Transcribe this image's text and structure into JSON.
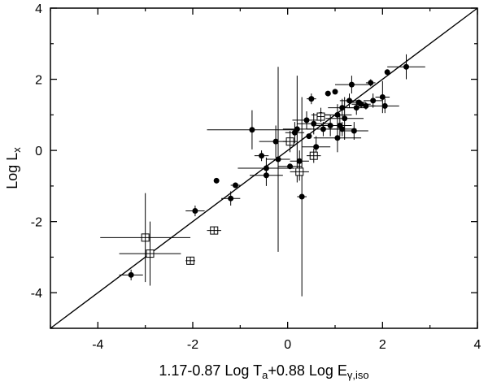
{
  "chart_data": {
    "type": "scatter",
    "title": "",
    "xlabel": {
      "main": "1.17-0.87 Log T",
      "sub1": "a",
      "mid": "+0.88 Log E",
      "sub2": "γ,iso"
    },
    "ylabel": {
      "main": "Log L",
      "sub": "x"
    },
    "xlim": [
      -5,
      4
    ],
    "ylim": [
      -5,
      4
    ],
    "xticks": [
      -4,
      -2,
      0,
      2,
      4
    ],
    "yticks": [
      -4,
      -2,
      0,
      2,
      4
    ],
    "xtick_labels": [
      "-4",
      "-2",
      "0",
      "2",
      "4"
    ],
    "ytick_labels": [
      "-4",
      "-2",
      "0",
      "2",
      "4"
    ],
    "grid": false,
    "fit_line": {
      "x": [
        -5,
        4
      ],
      "y": [
        -5,
        4
      ]
    },
    "series": [
      {
        "marker": "filled-circle",
        "points": [
          {
            "x": -3.3,
            "y": -3.5,
            "xerr": 0.25,
            "yerr": 0.15
          },
          {
            "x": -1.95,
            "y": -1.7,
            "xerr": 0.2,
            "yerr": 0.15
          },
          {
            "x": -1.5,
            "y": -0.85
          },
          {
            "x": -1.2,
            "y": -1.35,
            "xerr": 0.2,
            "yerr": 0.2
          },
          {
            "x": -1.1,
            "y": -0.98,
            "xerr": 0.1
          },
          {
            "x": -0.75,
            "y": 0.58,
            "xerr": 0.95,
            "yerr": 0.55
          },
          {
            "x": -0.55,
            "y": -0.15,
            "xerr": 0.15,
            "yerr": 0.15
          },
          {
            "x": -0.45,
            "y": -0.5,
            "xerr": 0.6,
            "yerr": 0.3
          },
          {
            "x": -0.45,
            "y": -0.7,
            "xerr": 0.35,
            "yerr": 0.3
          },
          {
            "x": -0.25,
            "y": 0.25,
            "xerr": 0.35,
            "yerr": 0.45
          },
          {
            "x": -0.2,
            "y": -0.25,
            "xerr": 0.25,
            "yerr": 2.6
          },
          {
            "x": 0.05,
            "y": -0.45,
            "xerr": 0.25
          },
          {
            "x": 0.15,
            "y": 0.5,
            "xerr": 0.2,
            "yerr": 0.3
          },
          {
            "x": 0.2,
            "y": 0.6,
            "xerr": 0.3,
            "yerr": 1.5
          },
          {
            "x": 0.25,
            "y": -0.3,
            "xerr": 0.2,
            "yerr": 0.3
          },
          {
            "x": 0.3,
            "y": -1.3,
            "xerr": 0.1,
            "yerr": 2.8
          },
          {
            "x": 0.4,
            "y": 0.85,
            "xerr": 0.3,
            "yerr": 0.25
          },
          {
            "x": 0.45,
            "y": 0.4
          },
          {
            "x": 0.5,
            "y": 1.45,
            "xerr": 0.1,
            "yerr": 0.15
          },
          {
            "x": 0.55,
            "y": 0.75,
            "xerr": 0.35,
            "yerr": 0.3
          },
          {
            "x": 0.6,
            "y": 0.1,
            "xerr": 0.3,
            "yerr": 0.3
          },
          {
            "x": 0.7,
            "y": 1.0,
            "xerr": 0.2,
            "yerr": 0.2
          },
          {
            "x": 0.75,
            "y": 0.6,
            "xerr": 0.35,
            "yerr": 0.2
          },
          {
            "x": 0.85,
            "y": 1.6
          },
          {
            "x": 0.9,
            "y": 0.7,
            "xerr": 0.3,
            "yerr": 0.3
          },
          {
            "x": 1.0,
            "y": 1.65
          },
          {
            "x": 1.05,
            "y": 0.35,
            "xerr": 0.5,
            "yerr": 0.4
          },
          {
            "x": 1.05,
            "y": 1.0,
            "xerr": 0.3,
            "yerr": 0.3
          },
          {
            "x": 1.1,
            "y": 0.7,
            "xerr": 0.25,
            "yerr": 0.3
          },
          {
            "x": 1.15,
            "y": 1.2,
            "xerr": 0.3,
            "yerr": 0.25
          },
          {
            "x": 1.15,
            "y": 0.6,
            "xerr": 0.3,
            "yerr": 0.2
          },
          {
            "x": 1.2,
            "y": 0.9,
            "xerr": 0.4,
            "yerr": 0.6
          },
          {
            "x": 1.3,
            "y": 1.4,
            "xerr": 0.2,
            "yerr": 0.2
          },
          {
            "x": 1.35,
            "y": 1.85,
            "xerr": 0.35,
            "yerr": 0.25
          },
          {
            "x": 1.4,
            "y": 0.55,
            "xerr": 0.3,
            "yerr": 0.25
          },
          {
            "x": 1.45,
            "y": 1.2,
            "xerr": 0.2,
            "yerr": 0.2
          },
          {
            "x": 1.5,
            "y": 1.35,
            "xerr": 0.15
          },
          {
            "x": 1.55,
            "y": 1.3,
            "xerr": 0.2,
            "yerr": 0.1
          },
          {
            "x": 1.65,
            "y": 1.25,
            "xerr": 0.2,
            "yerr": 0.1
          },
          {
            "x": 1.75,
            "y": 1.9,
            "xerr": 0.1,
            "yerr": 0.1
          },
          {
            "x": 1.8,
            "y": 1.4,
            "xerr": 0.2,
            "yerr": 0.2
          },
          {
            "x": 2.0,
            "y": 1.5,
            "xerr": 0.15,
            "yerr": 0.45
          },
          {
            "x": 2.05,
            "y": 1.25,
            "xerr": 0.3,
            "yerr": 0.2
          },
          {
            "x": 2.1,
            "y": 2.2
          },
          {
            "x": 2.5,
            "y": 2.35,
            "xerr": 0.4,
            "yerr": 0.35
          }
        ]
      },
      {
        "marker": "open-square",
        "points": [
          {
            "x": -3.0,
            "y": -2.45,
            "xerr": 0.95,
            "yerr": 1.25
          },
          {
            "x": -2.9,
            "y": -2.9,
            "xerr": 0.65,
            "yerr": 0.9
          },
          {
            "x": -2.05,
            "y": -3.1,
            "xerr": 0.1
          },
          {
            "x": -1.55,
            "y": -2.25,
            "xerr": 0.15,
            "yerr": 0.1
          },
          {
            "x": 0.05,
            "y": 0.25,
            "xerr": 0.15,
            "yerr": 0.3
          },
          {
            "x": 0.25,
            "y": -0.6,
            "xerr": 0.2,
            "yerr": 0.25
          },
          {
            "x": 0.55,
            "y": -0.15,
            "xerr": 0.15,
            "yerr": 0.2
          },
          {
            "x": 0.7,
            "y": 0.95
          }
        ]
      }
    ],
    "colors": {
      "ink": "#000000",
      "open_marker_fill": "#ffffff"
    }
  }
}
